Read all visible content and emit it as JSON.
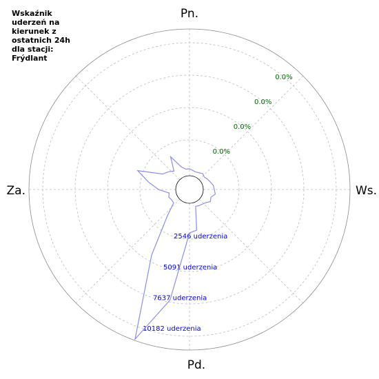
{
  "chart_data": {
    "type": "radar",
    "title": "Wskaźnik uderzeń na kierunek z ostatnich 24h dla stacji: Frýdlant",
    "direction_labels": [
      "Pn.",
      "Ws.",
      "Pd.",
      "Za."
    ],
    "theta": [
      0,
      10,
      20,
      30,
      40,
      50,
      60,
      70,
      80,
      90,
      100,
      110,
      120,
      130,
      140,
      150,
      160,
      170,
      180,
      190,
      200,
      210,
      220,
      230,
      240,
      250,
      260,
      270,
      280,
      290,
      300,
      310,
      320,
      330,
      340,
      350
    ],
    "values": [
      271,
      163,
      108,
      163,
      271,
      163,
      271,
      379,
      542,
      596,
      704,
      433,
      542,
      271,
      163,
      108,
      54,
      1896,
      2058,
      7475,
      11159,
      4604,
      1354,
      271,
      271,
      379,
      271,
      1083,
      1896,
      2979,
      1083,
      813,
      542,
      1625,
      542,
      271
    ],
    "color": "#8c8cf0",
    "rlim": [
      0,
      11267
    ],
    "rticks": [
      {
        "value": 2546,
        "label": "2546 uderzenia"
      },
      {
        "value": 5091,
        "label": "5091 uderzenia"
      },
      {
        "value": 7637,
        "label": "7637 uderzenia"
      },
      {
        "value": 10182,
        "label": "10182 uderzenia"
      }
    ],
    "percent_labels": [
      "0.0%",
      "0.0%",
      "0.0%",
      "0.0%"
    ],
    "grid": true
  }
}
